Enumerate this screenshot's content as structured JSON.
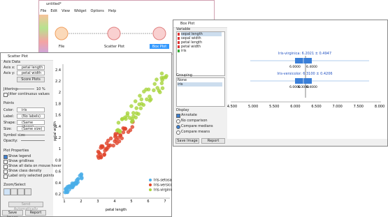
{
  "main_window": {
    "title": "untitled*",
    "menu": [
      "File",
      "Edit",
      "View",
      "Widget",
      "Options",
      "Help"
    ],
    "widgets": [
      "File",
      "Scatter Plot",
      "Box Plot"
    ]
  },
  "scatter_window": {
    "title": "Scatter Plot",
    "axis_data": "Axis Data",
    "axis_x_label": "Axis x:",
    "axis_x": "petal length",
    "axis_y_label": "Axis y:",
    "axis_y": "petal width",
    "score_plots": "Score Plots",
    "jittering_label": "Jittering:",
    "jittering": "10 %",
    "jitter_continuous": "Jitter continuous values",
    "points": "Points",
    "color_label": "Color:",
    "color": "iris",
    "label_label": "Label:",
    "label": "(No labels)",
    "shape_label": "Shape:",
    "shape": "(Same shape)",
    "size_label": "Size:",
    "size": "(Same size)",
    "symbol_size": "Symbol size:",
    "opacity": "Opacity:",
    "plot_properties": "Plot Properties",
    "options": [
      "Show legend",
      "Show gridlines",
      "Show all data on mouse hover",
      "Show class density",
      "Label only selected points"
    ],
    "zoom_select": "Zoom/Select",
    "send": "Send Automatically",
    "save": "Save Image",
    "report": "Report",
    "plot": {
      "x_title": "petal length",
      "y_title": "petal width",
      "xticks": [
        "1",
        "2",
        "3",
        "4",
        "5",
        "6",
        "7"
      ],
      "yticks": [
        "0.2",
        "0.4",
        "0.6",
        "0.8",
        "1",
        "1.2",
        "1.4",
        "1.6",
        "1.8",
        "2",
        "2.2",
        "2.4"
      ],
      "legend": [
        "Iris-setosa",
        "Iris-versicolor",
        "Iris-virginica"
      ]
    }
  },
  "box_window": {
    "title": "Box Plot",
    "variable": "Variable",
    "variables": [
      "sepal length",
      "sepal width",
      "petal length",
      "petal width",
      "iris"
    ],
    "grouping": "Grouping",
    "groups": [
      "None",
      "iris"
    ],
    "display": "Display",
    "annotate": "Annotate",
    "radios": [
      "No comparison",
      "Compare medians",
      "Compare means"
    ],
    "save": "Save Image",
    "report": "Report",
    "plot": {
      "rows": [
        {
          "title": "Iris-virginica: 6.2021 ± 0.4947",
          "labels": [
            "6.0000",
            "6.4000"
          ]
        },
        {
          "title": "Iris-versicolor: 6.3100 ± 0.4206",
          "labels": [
            "6.0000",
            "6.3000",
            "6.4000"
          ]
        }
      ],
      "xticks": [
        "4.500",
        "5.000",
        "5.500",
        "6.000",
        "6.500",
        "7.000",
        "7.500",
        "8.000"
      ]
    }
  }
}
